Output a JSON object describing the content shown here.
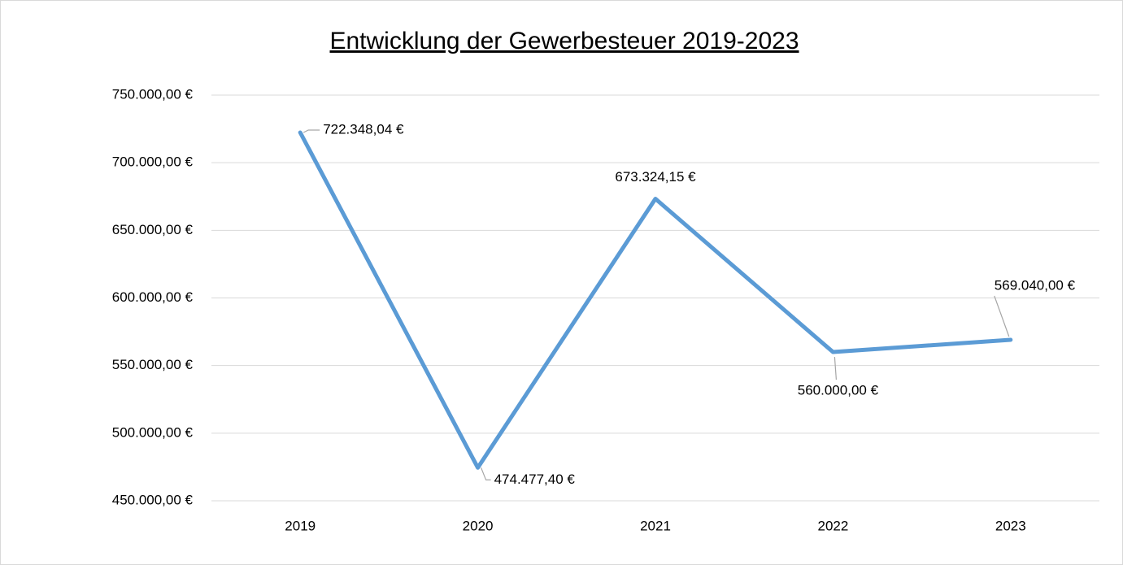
{
  "chart_data": {
    "type": "line",
    "title": "Entwicklung der Gewerbesteuer 2019-2023",
    "categories": [
      "2019",
      "2020",
      "2021",
      "2022",
      "2023"
    ],
    "series": [
      {
        "name": "Gewerbesteuer",
        "color": "#5b9bd5",
        "values": [
          722348.04,
          474477.4,
          673324.15,
          560000,
          569040
        ],
        "value_labels": [
          "722.348,04 €",
          "474.477,40 €",
          "673.324,15 €",
          "560.000,00 €",
          "569.040,00 €"
        ]
      }
    ],
    "ylim": [
      450000,
      750000
    ],
    "yticks": [
      {
        "value": 450000,
        "label": "450.000,00 €"
      },
      {
        "value": 500000,
        "label": "500.000,00 €"
      },
      {
        "value": 550000,
        "label": "550.000,00 €"
      },
      {
        "value": 600000,
        "label": "600.000,00 €"
      },
      {
        "value": 650000,
        "label": "650.000,00 €"
      },
      {
        "value": 700000,
        "label": "700.000,00 €"
      },
      {
        "value": 750000,
        "label": "750.000,00 €"
      }
    ],
    "grid": true
  }
}
